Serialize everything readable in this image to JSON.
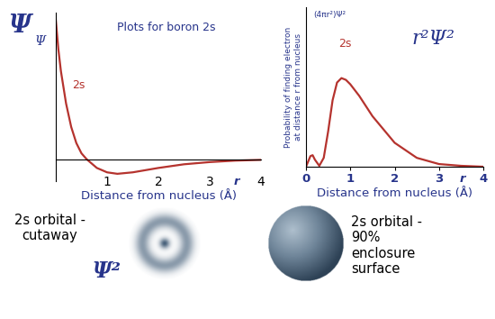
{
  "chart_data": [
    {
      "type": "line",
      "title": "Plots for boron 2s",
      "header": "Ψ",
      "y_label": "Ψ",
      "x_label": "Distance from nucleus (Å)",
      "curve_label": "2s",
      "x_symbol": "r",
      "x": [
        0,
        0.05,
        0.1,
        0.2,
        0.3,
        0.4,
        0.5,
        0.6,
        0.8,
        1.0,
        1.2,
        1.5,
        2.0,
        2.5,
        3.0,
        3.5,
        4.0
      ],
      "values": [
        0.95,
        0.75,
        0.6,
        0.38,
        0.22,
        0.11,
        0.04,
        0.0,
        -0.06,
        -0.09,
        -0.1,
        -0.09,
        -0.06,
        -0.035,
        -0.02,
        -0.01,
        -0.005
      ],
      "color": "#b5332e",
      "xlim": [
        0,
        4
      ],
      "xticks": [
        1,
        2,
        3,
        4
      ],
      "ylim": [
        -0.15,
        1.0
      ],
      "tick_labels": "x",
      "grid": false
    },
    {
      "type": "line",
      "header": "r²Ψ²",
      "y_label": "Probability of finding electron\nat distance r from nucleus",
      "y_label_top": "(4πr²)Ψ²",
      "x_label": "Distance from nucleus (Å)",
      "curve_label": "2s",
      "x_symbol": "r",
      "x": [
        0,
        0.1,
        0.15,
        0.2,
        0.3,
        0.4,
        0.5,
        0.6,
        0.7,
        0.8,
        0.9,
        1.0,
        1.2,
        1.5,
        2.0,
        2.5,
        3.0,
        3.5,
        4.0
      ],
      "values": [
        0,
        0.12,
        0.13,
        0.08,
        0.01,
        0.1,
        0.4,
        0.75,
        0.95,
        1.0,
        0.98,
        0.93,
        0.8,
        0.57,
        0.27,
        0.1,
        0.03,
        0.01,
        0.0
      ],
      "color": "#b5332e",
      "xlim": [
        0,
        4
      ],
      "xticks": [
        0,
        1,
        2,
        3,
        4
      ],
      "ylim": [
        0,
        1.8
      ],
      "tick_labels": "x",
      "grid": false
    }
  ],
  "slide": {
    "cutaway_label": "2s orbital -\ncutaway",
    "cutaway_symbol": "Ψ²",
    "enclosure_label": "2s orbital -\n90%\nenclosure\nsurface"
  }
}
